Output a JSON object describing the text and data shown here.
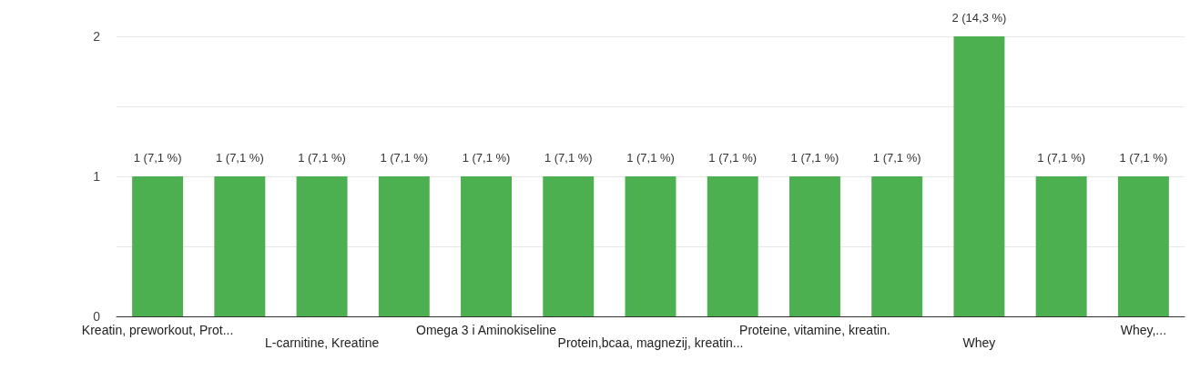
{
  "chart_data": {
    "type": "bar",
    "categories": [
      "Kreatin, preworkout, Prot...",
      null,
      "L-carnitine, Kreatine",
      null,
      "Omega 3 i Aminokiseline",
      null,
      "Protein,bcaa, magnezij, kreatin...",
      null,
      "Proteine, vitamine, kreatin.",
      null,
      "Whey",
      null,
      "Whey,..."
    ],
    "values": [
      1,
      1,
      1,
      1,
      1,
      1,
      1,
      1,
      1,
      1,
      2,
      1,
      1
    ],
    "value_labels": [
      "1 (7,1 %)",
      "1 (7,1 %)",
      "1 (7,1 %)",
      "1 (7,1 %)",
      "1 (7,1 %)",
      "1 (7,1 %)",
      "1 (7,1 %)",
      "1 (7,1 %)",
      "1 (7,1 %)",
      "1 (7,1 %)",
      "2 (14,3 %)",
      "1 (7,1 %)",
      "1 (7,1 %)"
    ],
    "color": "#4caf50",
    "ylim": [
      0,
      2
    ],
    "yticks": [
      0,
      {
        "value": 0.5,
        "label": null
      },
      1,
      {
        "value": 1.5,
        "label": null
      },
      2
    ],
    "grid": true
  }
}
